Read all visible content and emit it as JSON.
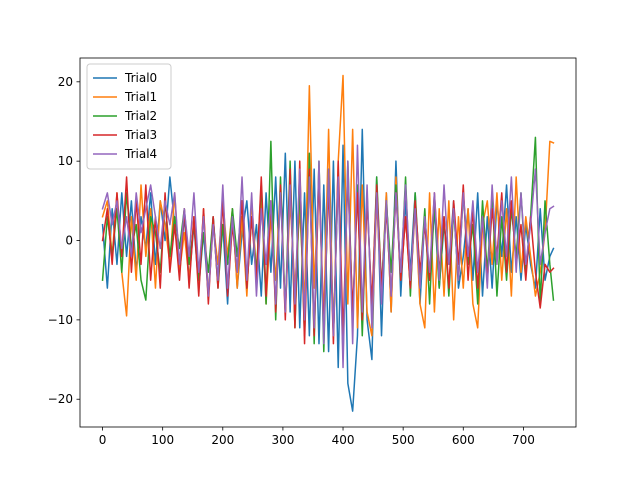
{
  "chart_data": {
    "type": "line",
    "title": "",
    "xlabel": "",
    "ylabel": "",
    "xlim": [
      -37.5,
      787.5
    ],
    "ylim": [
      -23.5,
      23.0
    ],
    "xticks": [
      0,
      100,
      200,
      300,
      400,
      500,
      600,
      700
    ],
    "yticks": [
      -20,
      -10,
      0,
      10,
      20
    ],
    "grid": false,
    "legend_position": "top-left",
    "series": [
      {
        "name": "Trial0",
        "color": "#1f77b4",
        "x": [
          0,
          8,
          16,
          24,
          32,
          40,
          48,
          56,
          64,
          72,
          80,
          88,
          96,
          104,
          112,
          120,
          128,
          136,
          144,
          152,
          160,
          168,
          176,
          184,
          192,
          200,
          208,
          216,
          224,
          232,
          240,
          248,
          256,
          264,
          272,
          280,
          288,
          296,
          304,
          312,
          320,
          328,
          336,
          344,
          352,
          360,
          368,
          376,
          384,
          392,
          400,
          408,
          416,
          424,
          432,
          440,
          448,
          456,
          464,
          472,
          480,
          488,
          496,
          504,
          512,
          520,
          528,
          536,
          544,
          552,
          560,
          568,
          576,
          584,
          592,
          600,
          608,
          616,
          624,
          632,
          640,
          648,
          656,
          664,
          672,
          680,
          688,
          696,
          704,
          712,
          720,
          728,
          736,
          744,
          750
        ],
        "y": [
          2,
          -6,
          4,
          -3,
          6,
          -2,
          5,
          -4,
          3,
          -1,
          6,
          -3,
          5,
          0,
          8,
          2,
          -4,
          3,
          -5,
          2,
          -6,
          1,
          -7,
          3,
          -5,
          2,
          -8,
          4,
          -6,
          1,
          5,
          -3,
          2,
          -7,
          6,
          -4,
          8,
          -6,
          11,
          -9,
          10,
          -11,
          6,
          -12,
          9,
          -13,
          7,
          -14,
          10,
          -16,
          12,
          -18,
          -21.5,
          -12,
          14,
          -10,
          -15,
          8,
          -12,
          6,
          -9,
          10,
          -7,
          5,
          -4,
          6,
          -8,
          3,
          -5,
          4,
          -6,
          2,
          -3,
          5,
          -6,
          -2,
          4,
          -5,
          6,
          -7,
          3,
          -6,
          5,
          -2,
          7,
          -4,
          3,
          -5,
          2,
          -3,
          -6,
          4,
          -5,
          -2,
          -1
        ]
      },
      {
        "name": "Trial1",
        "color": "#ff7f0e",
        "x": [
          0,
          8,
          16,
          24,
          32,
          40,
          48,
          56,
          64,
          72,
          80,
          88,
          96,
          104,
          112,
          120,
          128,
          136,
          144,
          152,
          160,
          168,
          176,
          184,
          192,
          200,
          208,
          216,
          224,
          232,
          240,
          248,
          256,
          264,
          272,
          280,
          288,
          296,
          304,
          312,
          320,
          328,
          336,
          344,
          352,
          360,
          368,
          376,
          384,
          392,
          400,
          408,
          416,
          424,
          432,
          440,
          448,
          456,
          464,
          472,
          480,
          488,
          496,
          504,
          512,
          520,
          528,
          536,
          544,
          552,
          560,
          568,
          576,
          584,
          592,
          600,
          608,
          616,
          624,
          632,
          640,
          648,
          656,
          664,
          672,
          680,
          688,
          696,
          704,
          712,
          720,
          728,
          736,
          744,
          750
        ],
        "y": [
          3,
          5,
          -2,
          6,
          -4,
          -9.5,
          3,
          -5,
          7,
          -2,
          4,
          -6,
          5,
          2,
          -3,
          6,
          -4,
          1,
          -5,
          3,
          -6,
          4,
          -7,
          2,
          -3,
          5,
          -2,
          4,
          -6,
          3,
          -7,
          5,
          -4,
          6,
          -8,
          3,
          -5,
          7,
          -9,
          5,
          -6,
          4,
          -8,
          19.5,
          -6,
          8,
          -10,
          14,
          -12,
          10,
          20.8,
          -8,
          14,
          -11,
          7,
          -9,
          -12,
          5,
          -7,
          6,
          -9,
          8,
          -5,
          3,
          -6,
          4,
          -8,
          -11,
          6,
          -9,
          4,
          -7,
          5,
          -10,
          3,
          -6,
          4,
          -8,
          -11,
          2,
          5,
          -3,
          6,
          -5,
          4,
          -7,
          8,
          -4,
          3,
          -2,
          -7,
          -4,
          1,
          12.5,
          12.3
        ]
      },
      {
        "name": "Trial2",
        "color": "#2ca02c",
        "x": [
          0,
          8,
          16,
          24,
          32,
          40,
          48,
          56,
          64,
          72,
          80,
          88,
          96,
          104,
          112,
          120,
          128,
          136,
          144,
          152,
          160,
          168,
          176,
          184,
          192,
          200,
          208,
          216,
          224,
          232,
          240,
          248,
          256,
          264,
          272,
          280,
          288,
          296,
          304,
          312,
          320,
          328,
          336,
          344,
          352,
          360,
          368,
          376,
          384,
          392,
          400,
          408,
          416,
          424,
          432,
          440,
          448,
          456,
          464,
          472,
          480,
          488,
          496,
          504,
          512,
          520,
          528,
          536,
          544,
          552,
          560,
          568,
          576,
          584,
          592,
          600,
          608,
          616,
          624,
          632,
          640,
          648,
          656,
          664,
          672,
          680,
          688,
          696,
          704,
          712,
          720,
          728,
          736,
          744,
          750
        ],
        "y": [
          -5,
          3,
          -2,
          4,
          -4,
          6,
          -1,
          2,
          -5,
          -7.5,
          3,
          1,
          -4,
          5,
          -2,
          3,
          -1,
          4,
          -3,
          2,
          -5,
          1,
          -4,
          3,
          -6,
          2,
          -3,
          4,
          -2,
          5,
          -6,
          3,
          -4,
          7,
          -8,
          12.5,
          -10,
          8,
          -9,
          10,
          -11,
          7,
          -12,
          11,
          -13,
          10,
          -14,
          9,
          -12,
          8,
          -14.5,
          10,
          -10,
          7,
          -12,
          6,
          -9,
          8,
          -6,
          5,
          -4,
          7,
          -5,
          8,
          -7,
          6,
          -5,
          4,
          -8,
          5,
          -6,
          3,
          -7,
          4,
          -5,
          6,
          -3,
          2,
          -8,
          5,
          -4,
          6,
          -7,
          3,
          -5,
          4,
          -2,
          6,
          -4,
          3,
          13,
          -8,
          5,
          -3,
          -7.5
        ]
      },
      {
        "name": "Trial3",
        "color": "#d62728",
        "x": [
          0,
          8,
          16,
          24,
          32,
          40,
          48,
          56,
          64,
          72,
          80,
          88,
          96,
          104,
          112,
          120,
          128,
          136,
          144,
          152,
          160,
          168,
          176,
          184,
          192,
          200,
          208,
          216,
          224,
          232,
          240,
          248,
          256,
          264,
          272,
          280,
          288,
          296,
          304,
          312,
          320,
          328,
          336,
          344,
          352,
          360,
          368,
          376,
          384,
          392,
          400,
          408,
          416,
          424,
          432,
          440,
          448,
          456,
          464,
          472,
          480,
          488,
          496,
          504,
          512,
          520,
          528,
          536,
          544,
          552,
          560,
          568,
          576,
          584,
          592,
          600,
          608,
          616,
          624,
          632,
          640,
          648,
          656,
          664,
          672,
          680,
          688,
          696,
          704,
          712,
          720,
          728,
          736,
          744,
          750
        ],
        "y": [
          0,
          4,
          -3,
          6,
          -2,
          8,
          -4,
          5,
          -3,
          7,
          -5,
          3,
          -6,
          6,
          -4,
          2,
          -5,
          4,
          -6,
          3,
          -7,
          4,
          -8,
          3,
          -6,
          5,
          -7,
          2,
          -4,
          5,
          -6,
          3,
          -5,
          8,
          -7,
          5,
          -9,
          7,
          -10,
          9,
          -11,
          10,
          -13,
          9,
          -12,
          8,
          -11,
          7,
          -13,
          10,
          -12,
          8,
          -9,
          6,
          -10,
          5,
          -8,
          7,
          -6,
          4,
          -7,
          6,
          -5,
          3,
          -6,
          5,
          -4,
          2,
          -5,
          6,
          -4,
          3,
          -6,
          5,
          -3,
          7,
          -5,
          4,
          -6,
          3,
          -5,
          4,
          -2,
          6,
          -4,
          5,
          -3,
          2,
          -5,
          3,
          -4,
          -8.5,
          -3,
          -4,
          -3.5
        ]
      },
      {
        "name": "Trial4",
        "color": "#9467bd",
        "x": [
          0,
          8,
          16,
          24,
          32,
          40,
          48,
          56,
          64,
          72,
          80,
          88,
          96,
          104,
          112,
          120,
          128,
          136,
          144,
          152,
          160,
          168,
          176,
          184,
          192,
          200,
          208,
          216,
          224,
          232,
          240,
          248,
          256,
          264,
          272,
          280,
          288,
          296,
          304,
          312,
          320,
          328,
          336,
          344,
          352,
          360,
          368,
          376,
          384,
          392,
          400,
          408,
          416,
          424,
          432,
          440,
          448,
          456,
          464,
          472,
          480,
          488,
          496,
          504,
          512,
          520,
          528,
          536,
          544,
          552,
          560,
          568,
          576,
          584,
          592,
          600,
          608,
          616,
          624,
          632,
          640,
          648,
          656,
          664,
          672,
          680,
          688,
          696,
          704,
          712,
          720,
          728,
          736,
          744,
          750
        ],
        "y": [
          4,
          6,
          2,
          5,
          -1,
          3,
          -2,
          6,
          1,
          4,
          7,
          3,
          -1,
          5,
          2,
          6,
          -3,
          4,
          -2,
          6,
          -4,
          3,
          -7,
          2,
          -5,
          7,
          -6,
          3,
          -4,
          8,
          -5,
          6,
          -7,
          4,
          -3,
          5,
          -8,
          6,
          -9,
          7,
          -8,
          9,
          -10,
          8,
          -11,
          10,
          -13,
          9,
          -12,
          8,
          -16,
          10,
          -13,
          12,
          -9,
          7,
          -11,
          6,
          -8,
          5,
          -7,
          6,
          -4,
          7,
          -5,
          4,
          -6,
          3,
          -4,
          6,
          -5,
          7,
          -3,
          4,
          -5,
          6,
          -2,
          5,
          -4,
          3,
          -6,
          7,
          -3,
          5,
          -2,
          8,
          -4,
          6,
          -3,
          2,
          9,
          -3,
          1,
          4,
          4.3
        ]
      }
    ]
  }
}
